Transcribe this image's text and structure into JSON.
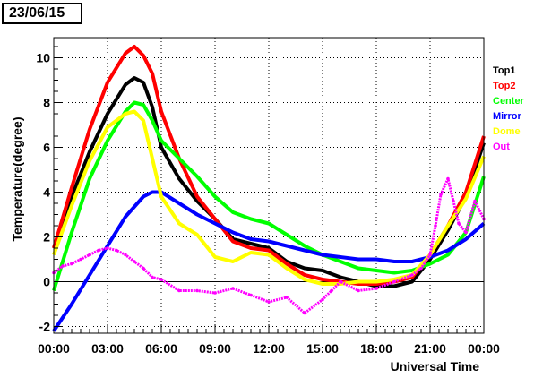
{
  "page_title": "23/06/15",
  "chart_data": {
    "type": "line",
    "title": "23/06/15",
    "xlabel": "Universal Time",
    "ylabel": "Temperature(degree)",
    "xlim": [
      0,
      24
    ],
    "ylim": [
      -2.3,
      10.9
    ],
    "x_ticks": [
      0,
      3,
      6,
      9,
      12,
      15,
      18,
      21,
      24
    ],
    "x_tick_labels": [
      "00:00",
      "03:00",
      "06:00",
      "09:00",
      "12:00",
      "15:00",
      "18:00",
      "21:00",
      "00:00"
    ],
    "y_ticks": [
      -2,
      0,
      2,
      4,
      6,
      8,
      10
    ],
    "y_tick_labels": [
      "-2",
      "0",
      "2",
      "4",
      "6",
      "8",
      "10"
    ],
    "grid": true,
    "legend_position": "right",
    "series": [
      {
        "name": "Top1",
        "color": "#000000",
        "x": [
          0,
          1,
          2,
          3,
          4,
          4.5,
          5,
          5.5,
          6,
          7,
          8,
          9,
          10,
          11,
          12,
          13,
          14,
          15,
          16,
          17,
          18,
          19,
          20,
          21,
          22,
          23,
          24
        ],
        "y": [
          1.5,
          3.8,
          5.8,
          7.5,
          8.8,
          9.1,
          8.9,
          7.8,
          6.0,
          4.6,
          3.6,
          2.8,
          1.9,
          1.7,
          1.5,
          0.9,
          0.6,
          0.5,
          0.2,
          0.0,
          -0.2,
          -0.2,
          0.0,
          1.0,
          2.3,
          3.8,
          6.2
        ]
      },
      {
        "name": "Top2",
        "color": "#ff0000",
        "x": [
          0,
          1,
          2,
          3,
          4,
          4.5,
          5,
          5.5,
          6,
          7,
          8,
          9,
          10,
          11,
          12,
          13,
          14,
          15,
          16,
          17,
          18,
          19,
          20,
          21,
          22,
          23,
          24
        ],
        "y": [
          1.5,
          4.2,
          6.8,
          8.9,
          10.2,
          10.5,
          10.1,
          9.3,
          7.6,
          5.5,
          3.8,
          2.8,
          1.8,
          1.5,
          1.4,
          0.8,
          0.3,
          0.1,
          0.0,
          -0.1,
          -0.1,
          0.0,
          0.2,
          1.2,
          2.5,
          4.0,
          6.5
        ]
      },
      {
        "name": "Center",
        "color": "#00ff00",
        "x": [
          0,
          1,
          2,
          3,
          4,
          4.5,
          5,
          5.5,
          6,
          7,
          8,
          9,
          10,
          11,
          12,
          13,
          14,
          15,
          16,
          17,
          18,
          19,
          20,
          21,
          22,
          23,
          24
        ],
        "y": [
          -0.4,
          2.2,
          4.6,
          6.3,
          7.6,
          8.0,
          7.9,
          7.2,
          6.3,
          5.5,
          4.7,
          3.8,
          3.1,
          2.8,
          2.6,
          2.1,
          1.6,
          1.2,
          0.9,
          0.6,
          0.5,
          0.4,
          0.5,
          0.8,
          1.2,
          2.2,
          4.7
        ]
      },
      {
        "name": "Mirror",
        "color": "#0000ff",
        "x": [
          0,
          1,
          2,
          3,
          4,
          5,
          5.5,
          6,
          7,
          8,
          9,
          10,
          11,
          12,
          13,
          14,
          15,
          16,
          17,
          18,
          19,
          20,
          21,
          22,
          23,
          24
        ],
        "y": [
          -2.2,
          -1.0,
          0.3,
          1.6,
          2.9,
          3.8,
          4.0,
          4.0,
          3.5,
          3.0,
          2.6,
          2.2,
          1.9,
          1.8,
          1.6,
          1.4,
          1.2,
          1.1,
          1.0,
          1.0,
          0.9,
          0.9,
          1.1,
          1.4,
          1.9,
          2.6
        ]
      },
      {
        "name": "Dome",
        "color": "#ffff00",
        "x": [
          0,
          1,
          2,
          3,
          4,
          4.5,
          5,
          5.5,
          6,
          7,
          8,
          9,
          10,
          11,
          12,
          13,
          14,
          15,
          16,
          17,
          18,
          19,
          20,
          21,
          22,
          23,
          24
        ],
        "y": [
          1.2,
          3.4,
          5.4,
          6.9,
          7.5,
          7.6,
          7.2,
          5.5,
          3.8,
          2.6,
          2.1,
          1.1,
          0.9,
          1.3,
          1.2,
          0.6,
          0.1,
          -0.1,
          -0.1,
          0.0,
          0.0,
          0.1,
          0.3,
          1.2,
          2.5,
          3.7,
          5.6
        ]
      },
      {
        "name": "Out",
        "color": "#ff00ff",
        "x": [
          0,
          0.5,
          1,
          1.5,
          2,
          2.5,
          3,
          3.5,
          4,
          4.5,
          5,
          5.5,
          6,
          7,
          8,
          9,
          10,
          11,
          12,
          13,
          14,
          15,
          15.5,
          16,
          17,
          18,
          19,
          20,
          20.5,
          21,
          21.3,
          21.6,
          22,
          22.3,
          22.6,
          23,
          23.5,
          24
        ],
        "y": [
          0.4,
          0.7,
          0.8,
          1.0,
          1.2,
          1.4,
          1.5,
          1.4,
          1.2,
          0.9,
          0.6,
          0.2,
          0.1,
          -0.4,
          -0.4,
          -0.5,
          -0.3,
          -0.6,
          -0.9,
          -0.7,
          -1.4,
          -0.8,
          -0.4,
          0.0,
          -0.4,
          -0.3,
          0.0,
          0.3,
          0.6,
          1.2,
          2.5,
          3.9,
          4.6,
          3.6,
          2.6,
          2.2,
          3.6,
          2.8
        ]
      }
    ]
  }
}
